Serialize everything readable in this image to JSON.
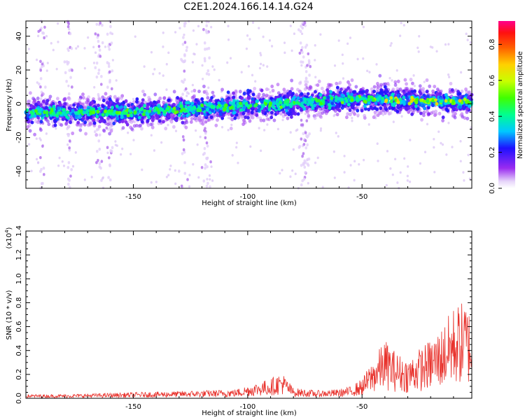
{
  "title": "C2E1.2024.166.14.14.G24",
  "chart_data": [
    {
      "type": "heatmap",
      "xlabel": "Height of straight line (km)",
      "ylabel": "Frequency (Hz)",
      "xlim": [
        -197,
        -2
      ],
      "ylim": [
        -50,
        49
      ],
      "xticks": [
        -150,
        -100,
        -50
      ],
      "yticks": [
        -40,
        -20,
        0,
        20,
        40
      ],
      "colorbar": {
        "label": "Normalized spectral amplitude",
        "range": [
          0,
          0.93
        ],
        "ticks": [
          0.0,
          0.2,
          0.4,
          0.6,
          0.8
        ]
      },
      "ridge": {
        "description_points_x": [
          -195,
          -150,
          -100,
          -50,
          -5
        ],
        "description_points_y": [
          -5,
          -5,
          -1,
          3,
          1
        ]
      }
    },
    {
      "type": "line",
      "xlabel": "Height of straight line (km)",
      "ylabel": "SNR (10 * v/v)",
      "y_multiplier": "(x10",
      "y_multiplier_exp": "4",
      "y_multiplier_close": ")",
      "xlim": [
        -197,
        -2
      ],
      "ylim": [
        0,
        1.4
      ],
      "xticks": [
        -150,
        -100,
        -50
      ],
      "yticks": [
        0.0,
        0.2,
        0.4,
        0.6,
        0.8,
        1.0,
        1.2,
        1.4
      ],
      "series_color": "#e8302a",
      "envelope": {
        "x": [
          -197,
          -180,
          -160,
          -140,
          -120,
          -105,
          -100,
          -90,
          -85,
          -80,
          -70,
          -60,
          -55,
          -50,
          -45,
          -40,
          -35,
          -30,
          -25,
          -20,
          -15,
          -10,
          -5,
          -2
        ],
        "y": [
          0.03,
          0.03,
          0.04,
          0.05,
          0.06,
          0.07,
          0.1,
          0.15,
          0.2,
          0.08,
          0.06,
          0.07,
          0.09,
          0.15,
          0.3,
          0.45,
          0.35,
          0.3,
          0.38,
          0.45,
          0.55,
          0.7,
          0.75,
          0.65
        ]
      }
    }
  ]
}
